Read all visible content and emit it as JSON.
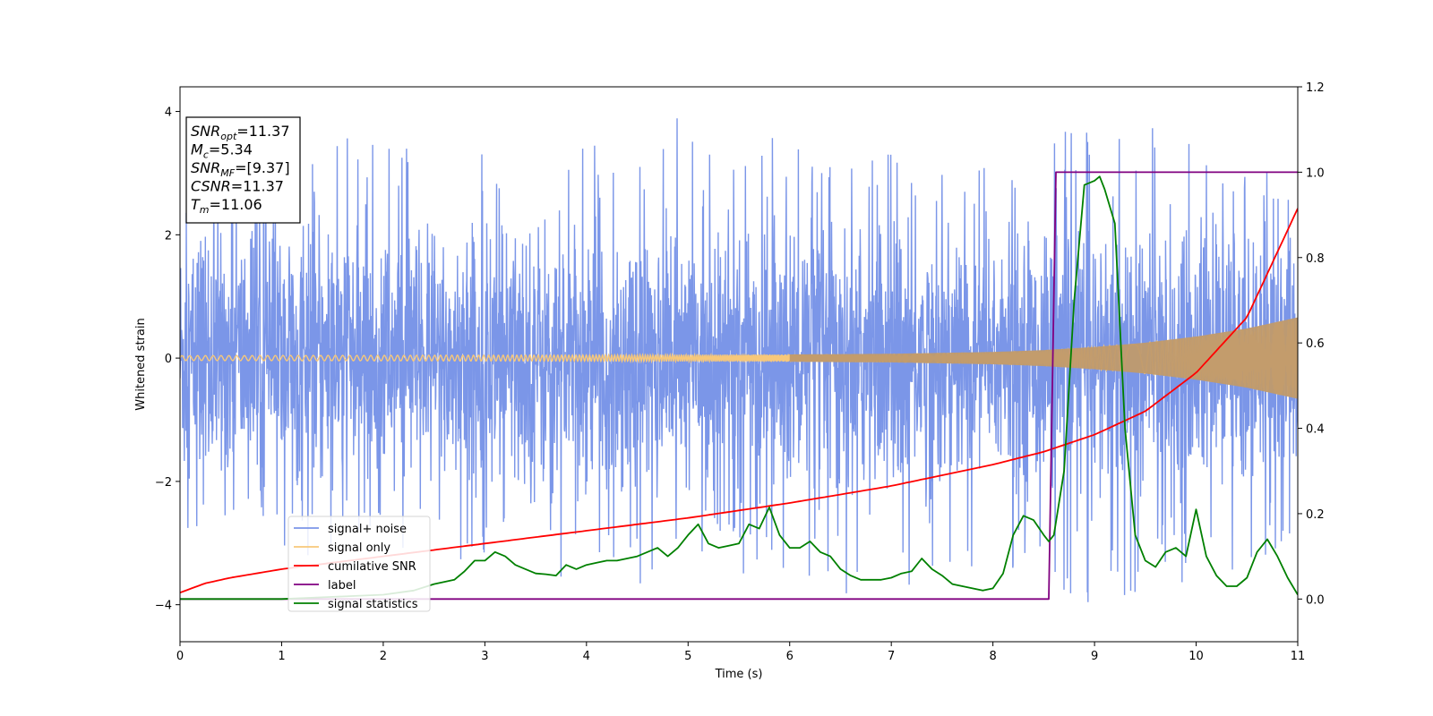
{
  "chart_data": {
    "type": "line",
    "xlabel": "Time (s)",
    "ylabel": "Whitened strain",
    "xlim": [
      0,
      11
    ],
    "ylim": [
      -4.6,
      4.4
    ],
    "y2lim": [
      -0.1,
      1.2
    ],
    "x_ticks": [
      "0",
      "1",
      "2",
      "3",
      "4",
      "5",
      "6",
      "7",
      "8",
      "9",
      "10",
      "11"
    ],
    "y_ticks": [
      "4",
      "2",
      "0",
      "−2",
      "−4"
    ],
    "y2_ticks": [
      "1.2",
      "1.0",
      "0.8",
      "0.6",
      "0.4",
      "0.2",
      "0.0"
    ],
    "grid": false,
    "legend_position": "lower-left",
    "annotation_box": [
      {
        "main": "SNR",
        "sub": "opt",
        "rest": "=11.37"
      },
      {
        "main": "M",
        "sub": "c",
        "rest": "=5.34"
      },
      {
        "main": "SNR",
        "sub": "MF",
        "rest": "=[9.37]"
      },
      {
        "main": "CSNR",
        "sub": "",
        "rest": "=11.37"
      },
      {
        "main": "T",
        "sub": "m",
        "rest": "=11.06"
      }
    ],
    "series": [
      {
        "name": "signal+ noise",
        "color": "#7b96e8",
        "axis": "left",
        "kind": "noise_band",
        "envelope": {
          "x": [
            0,
            1,
            2,
            3,
            4,
            5,
            6,
            7,
            8,
            9,
            10,
            11
          ],
          "upper": [
            3.0,
            3.1,
            4.0,
            3.3,
            3.4,
            4.0,
            3.5,
            3.4,
            3.1,
            3.9,
            3.6,
            3.4
          ],
          "lower": [
            -3.2,
            -3.3,
            -3.0,
            -3.4,
            -3.6,
            -3.7,
            -3.5,
            -4.15,
            -3.5,
            -4.0,
            -3.6,
            -3.6
          ]
        }
      },
      {
        "name": "signal only",
        "color": "#f7c87a",
        "axis": "left",
        "kind": "chirp",
        "envelope": {
          "x": [
            0,
            2,
            4,
            6,
            7,
            8,
            8.5,
            9,
            9.5,
            10,
            10.5,
            11
          ],
          "amp": [
            0.04,
            0.045,
            0.05,
            0.06,
            0.07,
            0.1,
            0.13,
            0.18,
            0.25,
            0.35,
            0.48,
            0.66
          ]
        }
      },
      {
        "name": "cumilative SNR",
        "color": "#ff0000",
        "axis": "right",
        "x": [
          0,
          0.25,
          0.5,
          1,
          2,
          3,
          4,
          5,
          6,
          7,
          8,
          8.5,
          9,
          9.5,
          10,
          10.5,
          11
        ],
        "y": [
          0.015,
          0.037,
          0.05,
          0.07,
          0.1,
          0.13,
          0.16,
          0.19,
          0.225,
          0.265,
          0.315,
          0.345,
          0.385,
          0.44,
          0.53,
          0.66,
          0.915
        ]
      },
      {
        "name": "label",
        "color": "#800080",
        "axis": "right",
        "x": [
          0,
          8.55,
          8.62,
          11
        ],
        "y": [
          0.0,
          0.0,
          1.0,
          1.0
        ]
      },
      {
        "name": "signal statistics",
        "color": "#008000",
        "axis": "right",
        "x": [
          0,
          1,
          1.5,
          2,
          2.3,
          2.5,
          2.7,
          2.8,
          2.9,
          3.0,
          3.1,
          3.2,
          3.3,
          3.4,
          3.5,
          3.6,
          3.7,
          3.8,
          3.9,
          4.0,
          4.1,
          4.2,
          4.3,
          4.4,
          4.5,
          4.6,
          4.7,
          4.8,
          4.9,
          5.0,
          5.1,
          5.2,
          5.3,
          5.4,
          5.5,
          5.6,
          5.7,
          5.8,
          5.9,
          6.0,
          6.1,
          6.2,
          6.3,
          6.4,
          6.5,
          6.6,
          6.7,
          6.8,
          6.9,
          7.0,
          7.1,
          7.2,
          7.3,
          7.4,
          7.5,
          7.6,
          7.7,
          7.8,
          7.9,
          8.0,
          8.1,
          8.2,
          8.3,
          8.4,
          8.5,
          8.55,
          8.6,
          8.7,
          8.8,
          8.9,
          9.0,
          9.05,
          9.1,
          9.2,
          9.3,
          9.4,
          9.5,
          9.6,
          9.7,
          9.8,
          9.9,
          10.0,
          10.1,
          10.2,
          10.3,
          10.4,
          10.5,
          10.6,
          10.7,
          10.8,
          10.9,
          11.0
        ],
        "y": [
          0.0,
          0.0,
          0.005,
          0.01,
          0.02,
          0.035,
          0.045,
          0.065,
          0.09,
          0.09,
          0.11,
          0.1,
          0.08,
          0.07,
          0.06,
          0.058,
          0.055,
          0.08,
          0.07,
          0.08,
          0.085,
          0.09,
          0.09,
          0.095,
          0.1,
          0.11,
          0.12,
          0.1,
          0.12,
          0.15,
          0.175,
          0.13,
          0.12,
          0.125,
          0.13,
          0.175,
          0.165,
          0.215,
          0.15,
          0.12,
          0.12,
          0.135,
          0.11,
          0.1,
          0.07,
          0.055,
          0.045,
          0.045,
          0.045,
          0.05,
          0.06,
          0.065,
          0.095,
          0.07,
          0.055,
          0.035,
          0.03,
          0.025,
          0.02,
          0.025,
          0.06,
          0.15,
          0.195,
          0.185,
          0.15,
          0.135,
          0.15,
          0.3,
          0.7,
          0.97,
          0.98,
          0.99,
          0.96,
          0.88,
          0.4,
          0.15,
          0.09,
          0.075,
          0.11,
          0.12,
          0.1,
          0.21,
          0.1,
          0.055,
          0.03,
          0.03,
          0.05,
          0.11,
          0.14,
          0.1,
          0.05,
          0.01
        ]
      }
    ]
  }
}
